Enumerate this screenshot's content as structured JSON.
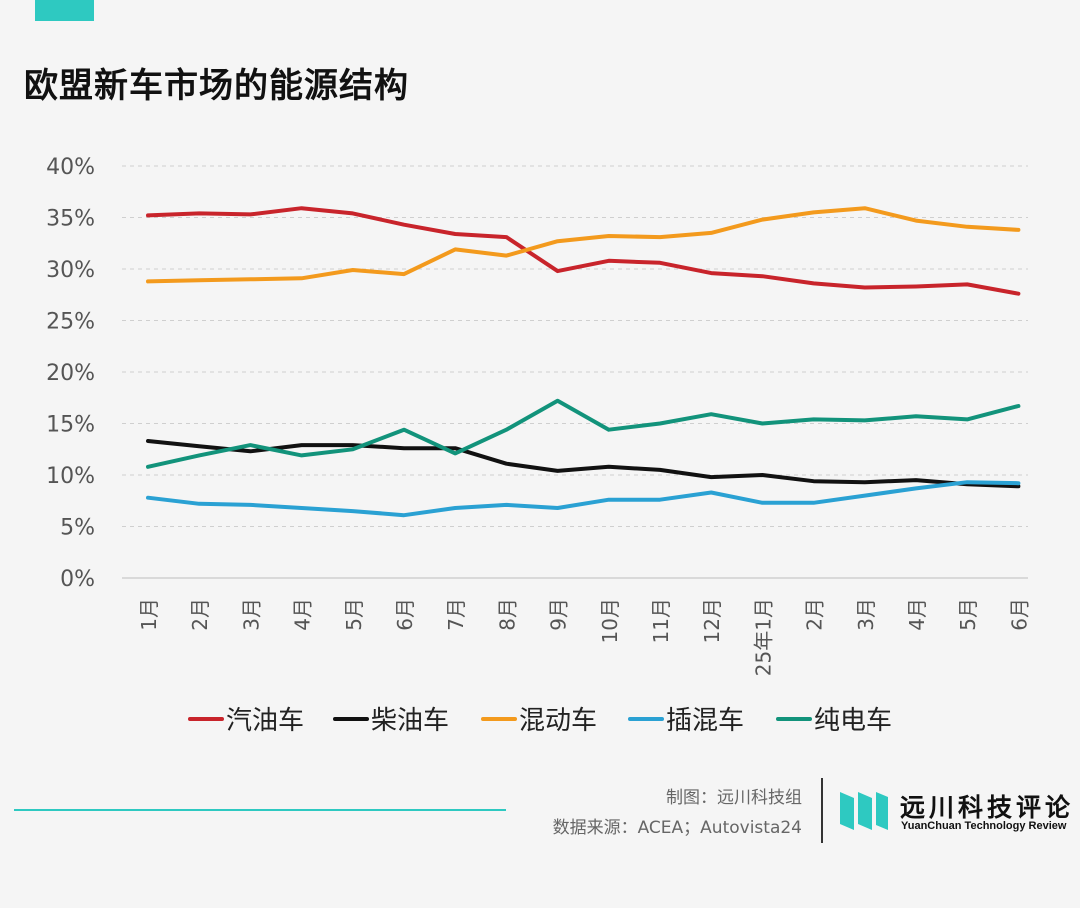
{
  "title": "欧盟新车市场的能源结构",
  "footer": {
    "credit_line1": "制图：远川科技组",
    "credit_line2": "数据来源：ACEA；Autovista24",
    "brand_cn": "远川科技评论",
    "brand_en": "YuanChuan Technology Review"
  },
  "colors": {
    "accent": "#2ec9c1"
  },
  "chart_data": {
    "type": "line",
    "title": "欧盟新车市场的能源结构",
    "categories": [
      "1月",
      "2月",
      "3月",
      "4月",
      "5月",
      "6月",
      "7月",
      "8月",
      "9月",
      "10月",
      "11月",
      "12月",
      "25年1月",
      "2月",
      "3月",
      "4月",
      "5月",
      "6月"
    ],
    "yticks": [
      "0%",
      "5%",
      "10%",
      "15%",
      "20%",
      "25%",
      "30%",
      "35%",
      "40%"
    ],
    "ylim": [
      0,
      40
    ],
    "grid": true,
    "legend_position": "bottom",
    "series": [
      {
        "name": "汽油车",
        "color": "#c8242b",
        "values": [
          35.2,
          35.4,
          35.3,
          35.9,
          35.4,
          34.3,
          33.4,
          33.1,
          29.8,
          30.8,
          30.6,
          29.6,
          29.3,
          28.6,
          28.2,
          28.3,
          28.5,
          27.6
        ]
      },
      {
        "name": "柴油车",
        "color": "#111111",
        "values": [
          13.3,
          12.8,
          12.3,
          12.9,
          12.9,
          12.6,
          12.6,
          11.1,
          10.4,
          10.8,
          10.5,
          9.8,
          10.0,
          9.4,
          9.3,
          9.5,
          9.1,
          8.9
        ]
      },
      {
        "name": "混动车",
        "color": "#f39a1d",
        "values": [
          28.8,
          28.9,
          29.0,
          29.1,
          29.9,
          29.5,
          31.9,
          31.3,
          32.7,
          33.2,
          33.1,
          33.5,
          34.8,
          35.5,
          35.9,
          34.7,
          34.1,
          33.8
        ]
      },
      {
        "name": "插混车",
        "color": "#2aa1d3",
        "values": [
          7.8,
          7.2,
          7.1,
          6.8,
          6.5,
          6.1,
          6.8,
          7.1,
          6.8,
          7.6,
          7.6,
          8.3,
          7.3,
          7.3,
          8.0,
          8.7,
          9.3,
          9.2
        ]
      },
      {
        "name": "纯电车",
        "color": "#12937b",
        "values": [
          10.8,
          11.9,
          12.9,
          11.9,
          12.5,
          14.4,
          12.1,
          14.4,
          17.2,
          14.4,
          15.0,
          15.9,
          15.0,
          15.4,
          15.3,
          15.7,
          15.4,
          16.7
        ]
      }
    ]
  }
}
